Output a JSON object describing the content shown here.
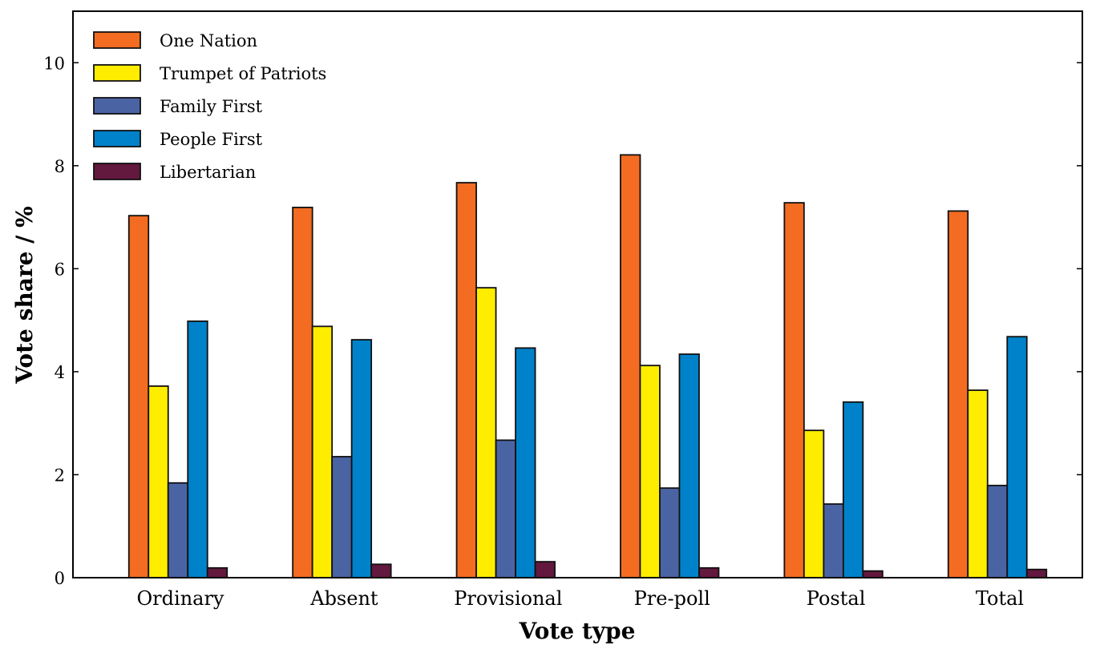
{
  "chart_data": {
    "type": "bar",
    "title": "",
    "xlabel": "Vote type",
    "ylabel": "Vote share / %",
    "ylim": [
      0,
      11
    ],
    "yticks": [
      0,
      2,
      4,
      6,
      8,
      10
    ],
    "grid": false,
    "legend_position": "upper left",
    "categories": [
      "Ordinary",
      "Absent",
      "Provisional",
      "Pre-poll",
      "Postal",
      "Total"
    ],
    "series": [
      {
        "name": "One Nation",
        "color": "#f36c21",
        "values": [
          7.03,
          7.19,
          7.67,
          8.21,
          7.28,
          7.12
        ]
      },
      {
        "name": "Trumpet of Patriots",
        "color": "#ffed00",
        "values": [
          3.72,
          4.88,
          5.63,
          4.12,
          2.86,
          3.64
        ]
      },
      {
        "name": "Family First",
        "color": "#4a64a3",
        "values": [
          1.84,
          2.35,
          2.67,
          1.74,
          1.43,
          1.79
        ]
      },
      {
        "name": "People First",
        "color": "#0082ca",
        "values": [
          4.98,
          4.62,
          4.46,
          4.34,
          3.41,
          4.68
        ]
      },
      {
        "name": "Libertarian",
        "color": "#63183e",
        "values": [
          0.19,
          0.26,
          0.31,
          0.19,
          0.13,
          0.16
        ]
      }
    ]
  }
}
